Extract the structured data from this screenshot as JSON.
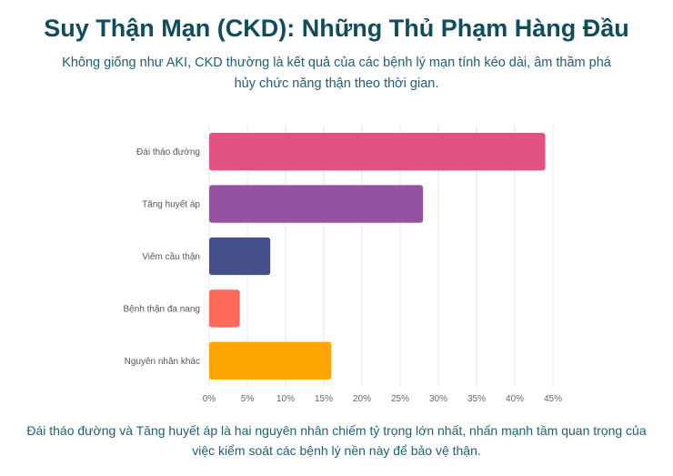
{
  "title": "Suy Thận Mạn (CKD): Những Thủ Phạm Hàng Đầu",
  "subtitle": "Không giống như AKI, CKD thường là kết quả của các bệnh lý mạn tính kéo dài, âm thầm phá hủy chức năng thận theo thời gian.",
  "caption": "Đái tháo đường và Tăng huyết áp là hai nguyên nhân chiếm tỷ trọng lớn nhất, nhấn mạnh tầm quan trọng của việc kiểm soát các bệnh lý nền này để bảo vệ thận.",
  "chart_data": {
    "type": "bar",
    "orientation": "horizontal",
    "categories": [
      "Đái tháo đường",
      "Tăng huyết áp",
      "Viêm cầu thận",
      "Bệnh thận đa nang",
      "Nguyên nhân khác"
    ],
    "values": [
      44,
      28,
      8,
      4,
      16
    ],
    "colors": [
      "#e0527f",
      "#9452a0",
      "#454f8a",
      "#ff6b5a",
      "#ffa600"
    ],
    "xlim": [
      0,
      45
    ],
    "xticks": [
      0,
      5,
      10,
      15,
      20,
      25,
      30,
      35,
      40,
      45
    ],
    "tick_suffix": "%",
    "grid": true,
    "legend": "none"
  }
}
